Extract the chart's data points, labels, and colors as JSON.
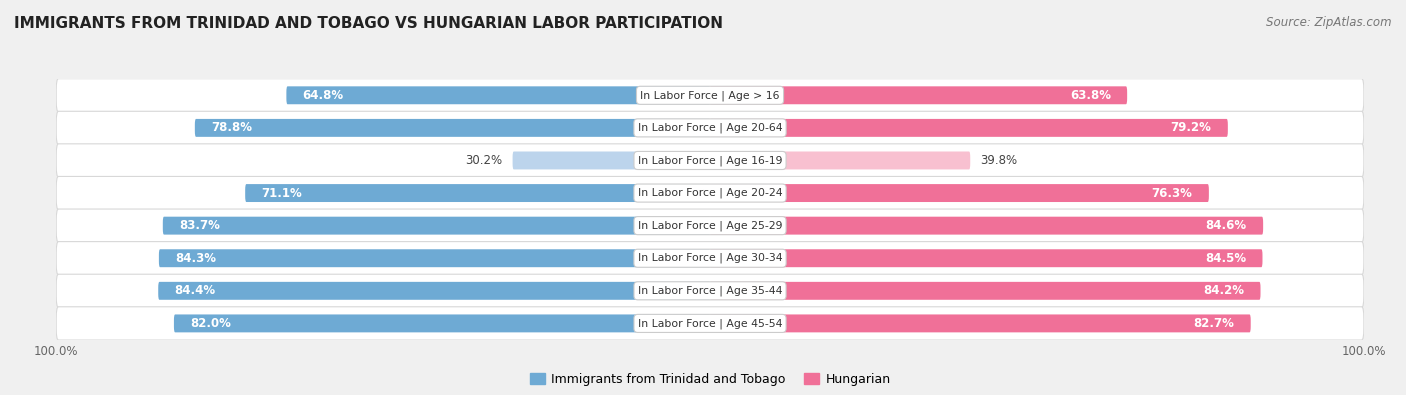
{
  "title": "IMMIGRANTS FROM TRINIDAD AND TOBAGO VS HUNGARIAN LABOR PARTICIPATION",
  "source": "Source: ZipAtlas.com",
  "categories": [
    "In Labor Force | Age > 16",
    "In Labor Force | Age 20-64",
    "In Labor Force | Age 16-19",
    "In Labor Force | Age 20-24",
    "In Labor Force | Age 25-29",
    "In Labor Force | Age 30-34",
    "In Labor Force | Age 35-44",
    "In Labor Force | Age 45-54"
  ],
  "trinidad_values": [
    64.8,
    78.8,
    30.2,
    71.1,
    83.7,
    84.3,
    84.4,
    82.0
  ],
  "hungarian_values": [
    63.8,
    79.2,
    39.8,
    76.3,
    84.6,
    84.5,
    84.2,
    82.7
  ],
  "trinidad_color": "#6eaad4",
  "hungarian_color": "#f07098",
  "trinidad_light_color": "#bcd4ec",
  "hungarian_light_color": "#f8c0d0",
  "bar_height": 0.55,
  "background_color": "#f0f0f0",
  "row_colors": [
    "#ffffff",
    "#f0f0f0"
  ],
  "label_fontsize": 8.5,
  "title_fontsize": 11,
  "legend_fontsize": 9,
  "max_value": 100.0,
  "light_threshold": 50
}
